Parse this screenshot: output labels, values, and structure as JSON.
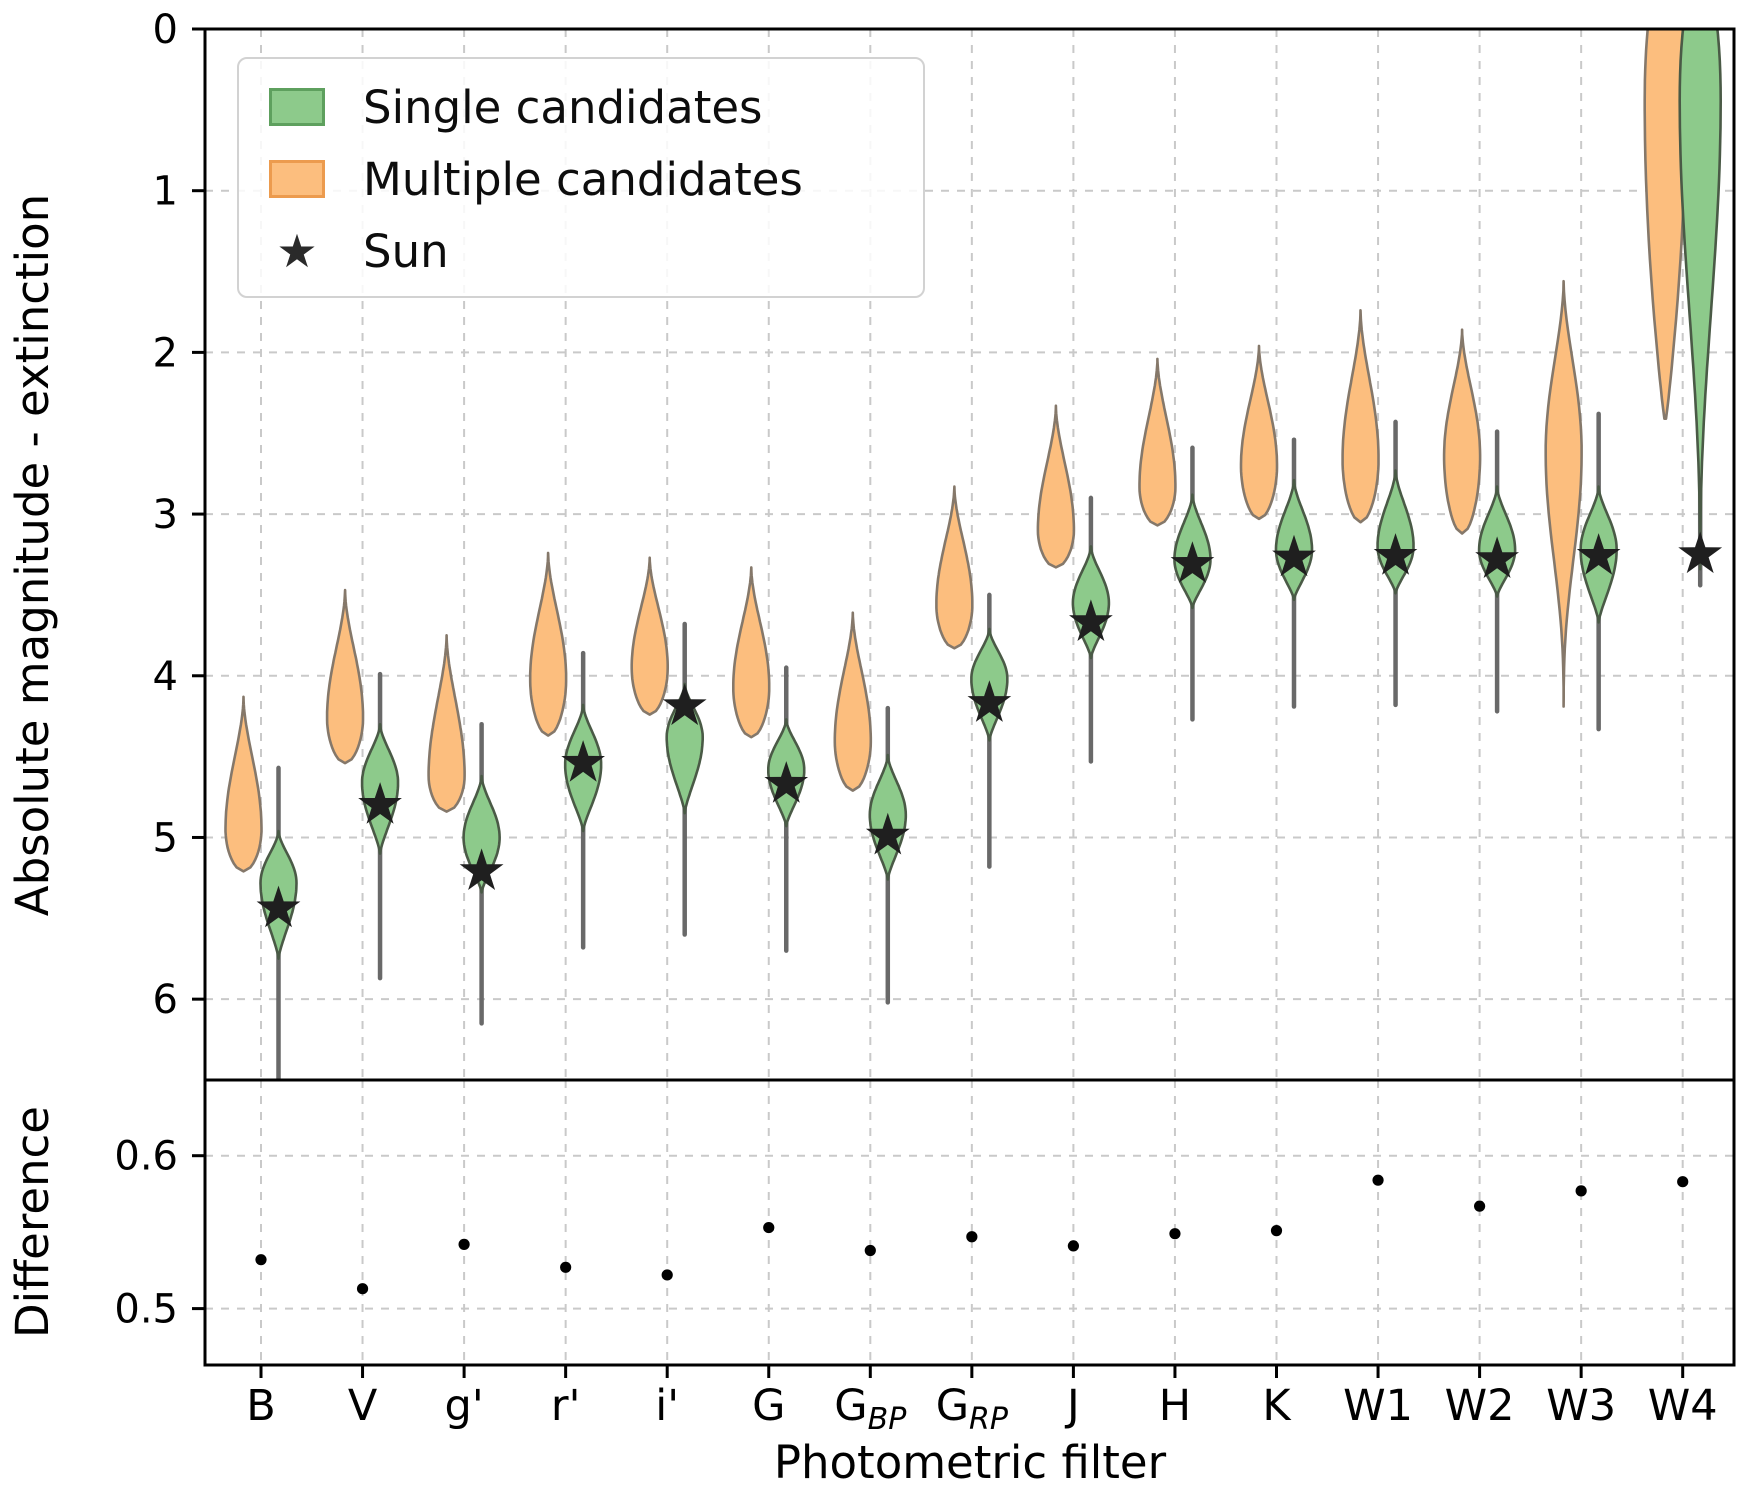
{
  "figure": {
    "legend": {
      "single_label": "Single candidates",
      "multiple_label": "Multiple candidates",
      "sun_label": "Sun",
      "sun_glyph": "★"
    },
    "colors": {
      "single_fill": "#8dca8b",
      "single_edge": "#4a5a46",
      "single_swatch_edge": "#5ea05e",
      "multiple_fill": "#fcbe7e",
      "multiple_edge": "#85786a",
      "multiple_swatch_edge": "#ec9b4e",
      "whisker": "#696969",
      "star": "#1f1f1f",
      "point": "#000000",
      "grid": "#c9c9c9",
      "axis": "#000000",
      "legend_border": "#d2d2d2"
    }
  },
  "chart_data": [
    {
      "type": "violin",
      "panel": "main",
      "ylabel": "Absolute magnitude - extinction",
      "yticks": [
        0,
        1,
        2,
        3,
        4,
        5,
        6
      ],
      "ylim": [
        0,
        6.5
      ],
      "grid": true,
      "legend_position": "upper left",
      "categories": [
        "B",
        "V",
        "g'",
        "r'",
        "i'",
        "G",
        "G_BP",
        "G_RP",
        "J",
        "H",
        "K",
        "W1",
        "W2",
        "W3",
        "W4"
      ],
      "series": [
        {
          "name": "Multiple candidates",
          "violins": [
            {
              "top": 4.13,
              "peak": 4.95,
              "bottom": 5.21,
              "profile": "drop"
            },
            {
              "top": 3.47,
              "peak": 4.26,
              "bottom": 4.54,
              "profile": "drop"
            },
            {
              "top": 3.75,
              "peak": 4.62,
              "bottom": 4.84,
              "profile": "drop"
            },
            {
              "top": 3.24,
              "peak": 4.02,
              "bottom": 4.37,
              "profile": "drop"
            },
            {
              "top": 3.27,
              "peak": 3.95,
              "bottom": 4.24,
              "profile": "drop"
            },
            {
              "top": 3.33,
              "peak": 4.07,
              "bottom": 4.38,
              "profile": "drop"
            },
            {
              "top": 3.61,
              "peak": 4.4,
              "bottom": 4.71,
              "profile": "drop"
            },
            {
              "top": 2.83,
              "peak": 3.56,
              "bottom": 3.83,
              "profile": "drop"
            },
            {
              "top": 2.33,
              "peak": 3.1,
              "bottom": 3.33,
              "profile": "drop"
            },
            {
              "top": 2.04,
              "peak": 2.83,
              "bottom": 3.07,
              "profile": "drop"
            },
            {
              "top": 1.96,
              "peak": 2.7,
              "bottom": 3.03,
              "profile": "drop"
            },
            {
              "top": 1.74,
              "peak": 2.66,
              "bottom": 3.05,
              "profile": "drop"
            },
            {
              "top": 1.86,
              "peak": 2.64,
              "bottom": 3.12,
              "profile": "drop"
            },
            {
              "top": 1.56,
              "peak": 2.62,
              "bottom": 4.19,
              "profile": "drop_long"
            },
            {
              "top": -0.3,
              "peak": 0.45,
              "bottom": 2.41,
              "profile": "top_wide",
              "hw": 20.5
            }
          ]
        },
        {
          "name": "Single candidates",
          "violins": [
            {
              "whisker_top": 4.57,
              "whisker_bottom": 6.6,
              "body_top": 4.96,
              "peak": 5.28,
              "body_bottom": 5.75,
              "profile": "leaf"
            },
            {
              "whisker_top": 3.99,
              "whisker_bottom": 5.87,
              "body_top": 4.3,
              "peak": 4.66,
              "body_bottom": 5.1,
              "profile": "leaf"
            },
            {
              "whisker_top": 4.3,
              "whisker_bottom": 6.15,
              "body_top": 4.62,
              "peak": 5.0,
              "body_bottom": 5.34,
              "profile": "leaf"
            },
            {
              "whisker_top": 3.86,
              "whisker_bottom": 5.68,
              "body_top": 4.18,
              "peak": 4.55,
              "body_bottom": 4.96,
              "profile": "leaf"
            },
            {
              "whisker_top": 3.68,
              "whisker_bottom": 5.6,
              "body_top": 4.05,
              "peak": 4.38,
              "body_bottom": 4.85,
              "profile": "leaf"
            },
            {
              "whisker_top": 3.95,
              "whisker_bottom": 5.7,
              "body_top": 4.27,
              "peak": 4.58,
              "body_bottom": 4.93,
              "profile": "leaf"
            },
            {
              "whisker_top": 4.2,
              "whisker_bottom": 6.02,
              "body_top": 4.49,
              "peak": 4.86,
              "body_bottom": 5.26,
              "profile": "leaf"
            },
            {
              "whisker_top": 3.5,
              "whisker_bottom": 5.18,
              "body_top": 3.71,
              "peak": 4.02,
              "body_bottom": 4.4,
              "profile": "leaf"
            },
            {
              "whisker_top": 2.9,
              "whisker_bottom": 4.53,
              "body_top": 3.2,
              "peak": 3.55,
              "body_bottom": 3.89,
              "profile": "leaf"
            },
            {
              "whisker_top": 2.59,
              "whisker_bottom": 4.27,
              "body_top": 2.88,
              "peak": 3.28,
              "body_bottom": 3.58,
              "profile": "leaf"
            },
            {
              "whisker_top": 2.54,
              "whisker_bottom": 4.19,
              "body_top": 2.79,
              "peak": 3.22,
              "body_bottom": 3.53,
              "profile": "leaf"
            },
            {
              "whisker_top": 2.43,
              "whisker_bottom": 4.18,
              "body_top": 2.73,
              "peak": 3.2,
              "body_bottom": 3.49,
              "profile": "leaf"
            },
            {
              "whisker_top": 2.49,
              "whisker_bottom": 4.22,
              "body_top": 2.83,
              "peak": 3.22,
              "body_bottom": 3.51,
              "profile": "leaf"
            },
            {
              "whisker_top": 2.38,
              "whisker_bottom": 4.33,
              "body_top": 2.83,
              "peak": 3.22,
              "body_bottom": 3.67,
              "profile": "leaf"
            },
            {
              "whisker_top": 0.5,
              "whisker_bottom": 3.44,
              "body_top": -0.3,
              "peak": 0.43,
              "body_bottom": 3.34,
              "profile": "leaf_long",
              "hw": 20.5
            }
          ]
        },
        {
          "name": "Sun",
          "marker": "star",
          "values": [
            5.44,
            4.8,
            5.21,
            4.54,
            4.19,
            4.67,
            4.99,
            4.17,
            3.67,
            3.31,
            3.27,
            3.26,
            3.28,
            3.26,
            3.25
          ]
        }
      ]
    },
    {
      "type": "scatter",
      "panel": "bottom",
      "ylabel": "Difference",
      "xlabel": "Photometric filter",
      "yticks": [
        0.6,
        0.5
      ],
      "ylim": [
        0.463,
        0.649
      ],
      "grid": true,
      "categories": [
        "B",
        "V",
        "g'",
        "r'",
        "i'",
        "G",
        "G_BP",
        "G_RP",
        "J",
        "H",
        "K",
        "W1",
        "W2",
        "W3",
        "W4"
      ],
      "values": [
        0.532,
        0.513,
        0.542,
        0.527,
        0.522,
        0.553,
        0.538,
        0.547,
        0.541,
        0.549,
        0.551,
        0.584,
        0.567,
        0.577,
        0.583
      ]
    }
  ]
}
